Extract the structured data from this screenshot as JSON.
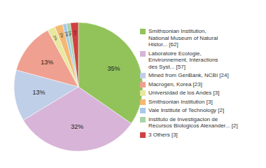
{
  "chart_data": {
    "type": "pie",
    "categories": [
      "Smithsonian Institution,\nNational Museum of Natural\nHistor... [62]",
      "Laboratoire Ecologie,\nEnvironnement, Interactions\ndes Syst... [57]",
      "Mined from GenBank, NCBI [24]",
      "Macrogen, Korea [23]",
      "Universidad de los Andes [3]",
      "Smithsonian Institution [3]",
      "Vale Institute of Technology [2]",
      "Instituto de Investigacion de\nRecursos Biologicos Alexander... [2]",
      "3 Others [3]"
    ],
    "values": [
      35,
      32,
      13,
      13,
      2,
      2,
      1,
      1,
      2
    ],
    "value_labels": [
      "35%",
      "32%",
      "13%",
      "13%",
      "2%",
      "2%",
      "1%",
      "1%",
      "2%"
    ],
    "colors": [
      "#92c35b",
      "#d8b4d8",
      "#c0cfe8",
      "#f0a090",
      "#e8e8a0",
      "#f4b870",
      "#a8c8e8",
      "#a8d4a8",
      "#d04040"
    ],
    "data_labels": true,
    "legend": "right"
  }
}
